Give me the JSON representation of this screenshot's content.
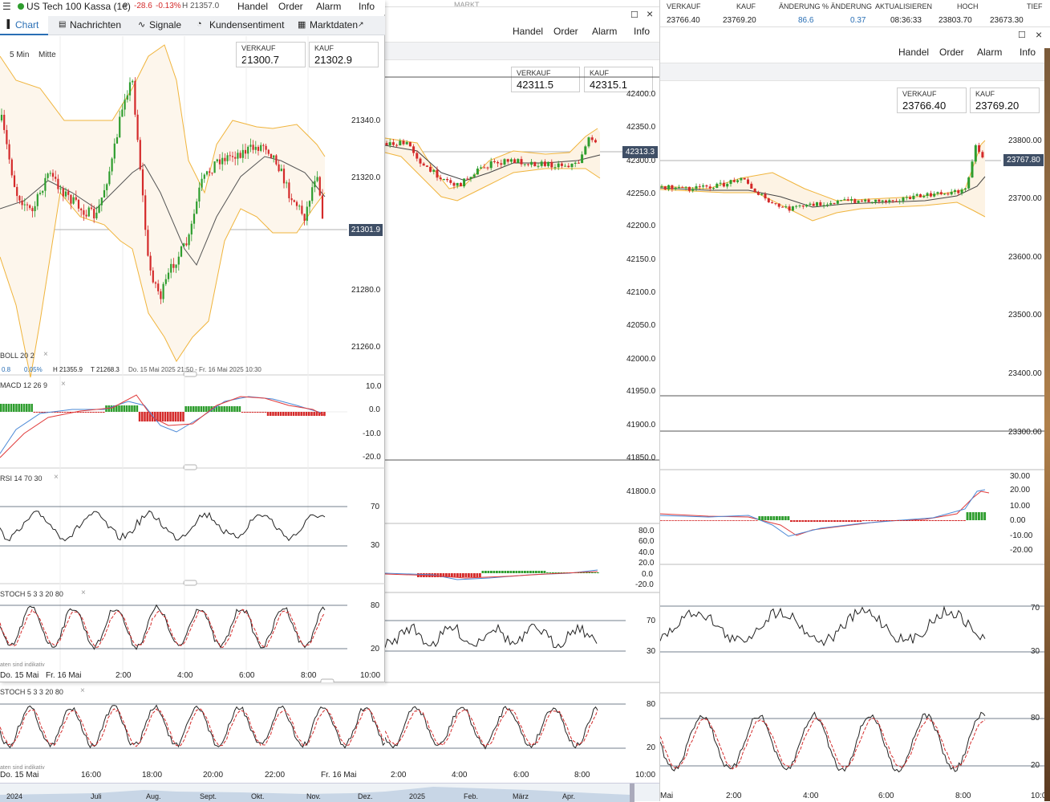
{
  "w1": {
    "instrument": "US Tech 100 Kassa (1€)",
    "change": "-28.6",
    "change_pct": "-0.13%",
    "high": "H 21357.0",
    "menu": [
      "Handel",
      "Order",
      "Alarm",
      "Info"
    ],
    "tabs": [
      "Chart",
      "Nachrichten",
      "Signale",
      "Kundensentiment",
      "Marktdaten"
    ],
    "interval": "5 Min",
    "price_mode": "Mitte",
    "sell_label": "VERKAUF",
    "sell_value": "21300.7",
    "buy_label": "KAUF",
    "buy_value": "21302.9",
    "price_ticks": [
      "21340.0",
      "21320.0",
      "21280.0",
      "21260.0"
    ],
    "current_price": "21301.9",
    "boll_label": "BOLL 20 2",
    "info_a": "0.8",
    "info_b": "0.05%",
    "info_h": "H 21355.9",
    "info_t": "T 21268.3",
    "info_range": "Do. 15 Mai 2025 21:50 - Fr. 16 Mai 2025 10:30",
    "macd_label": "MACD 12 26 9",
    "macd_ticks": [
      "10.0",
      "0.0",
      "-10.0",
      "-20.0"
    ],
    "rsi_label": "RSI 14 70 30",
    "rsi_ticks": [
      "70",
      "30"
    ],
    "stoch_label": "STOCH 5 3 3 20 80",
    "stoch_ticks": [
      "80",
      "20"
    ],
    "note": "aten sind indikativ",
    "time_labels": [
      "Do. 15 Mai",
      "Fr. 16 Mai",
      "2:00",
      "4:00",
      "6:00",
      "8:00",
      "10:00"
    ]
  },
  "w2": {
    "menu": [
      "Handel",
      "Order",
      "Alarm",
      "Info"
    ],
    "sell_label": "VERKAUF",
    "sell_value": "42311.5",
    "buy_label": "KAUF",
    "buy_value": "42315.1",
    "price_ticks": [
      "42400.0",
      "42350.0",
      "42300.0",
      "42250.0",
      "42200.0",
      "42150.0",
      "42100.0",
      "42050.0",
      "42000.0",
      "41950.0",
      "41900.0",
      "41850.0",
      "41800.0"
    ],
    "current_price": "42313.3",
    "macd_ticks": [
      "80.0",
      "60.0",
      "40.0",
      "20.0",
      "0.0",
      "-20.0"
    ],
    "rsi_ticks": [
      "70",
      "30"
    ],
    "stoch_label": "STOCH 5 3 3 20 80",
    "stoch_ticks": [
      "80",
      "20"
    ],
    "note": "aten sind indikativ",
    "time_labels": [
      "Do. 15 Mai",
      "16:00",
      "18:00",
      "20:00",
      "22:00",
      "Fr. 16 Mai",
      "2:00",
      "4:00",
      "6:00",
      "8:00",
      "10:00"
    ],
    "nav_labels": [
      "2024",
      "Juli",
      "Aug.",
      "Sept.",
      "Okt.",
      "Nov.",
      "Dez.",
      "2025",
      "Feb.",
      "März",
      "Apr."
    ]
  },
  "w3": {
    "header_top": "MARKT",
    "headers": [
      "VERKAUF",
      "KAUF",
      "ÄNDERUNG",
      "% ÄNDERUNG",
      "AKTUALISIEREN",
      "HOCH",
      "TIEF"
    ],
    "values": [
      "23766.40",
      "23769.20",
      "86.6",
      "0.37",
      "08:36:33",
      "23803.70",
      "23673.30"
    ],
    "menu": [
      "Handel",
      "Order",
      "Alarm",
      "Info"
    ],
    "sell_label": "VERKAUF",
    "sell_value": "23766.40",
    "buy_label": "KAUF",
    "buy_value": "23769.20",
    "price_ticks": [
      "23800.00",
      "23700.00",
      "23600.00",
      "23500.00",
      "23400.00",
      "23300.00"
    ],
    "current_price": "23767.80",
    "macd_ticks": [
      "30.00",
      "20.00",
      "10.00",
      "0.00",
      "-10.00",
      "-20.00"
    ],
    "rsi_ticks": [
      "70",
      "30"
    ],
    "stoch_ticks": [
      "80",
      "20"
    ],
    "time_labels": [
      "Mai",
      "2:00",
      "4:00",
      "6:00",
      "8:00",
      "10:0"
    ]
  },
  "colors": {
    "up": "#2e9d2e",
    "down": "#d42a2a",
    "band": "#f0b43c",
    "tag": "#3f4f66",
    "accent_tab": "#2a6fb5"
  }
}
